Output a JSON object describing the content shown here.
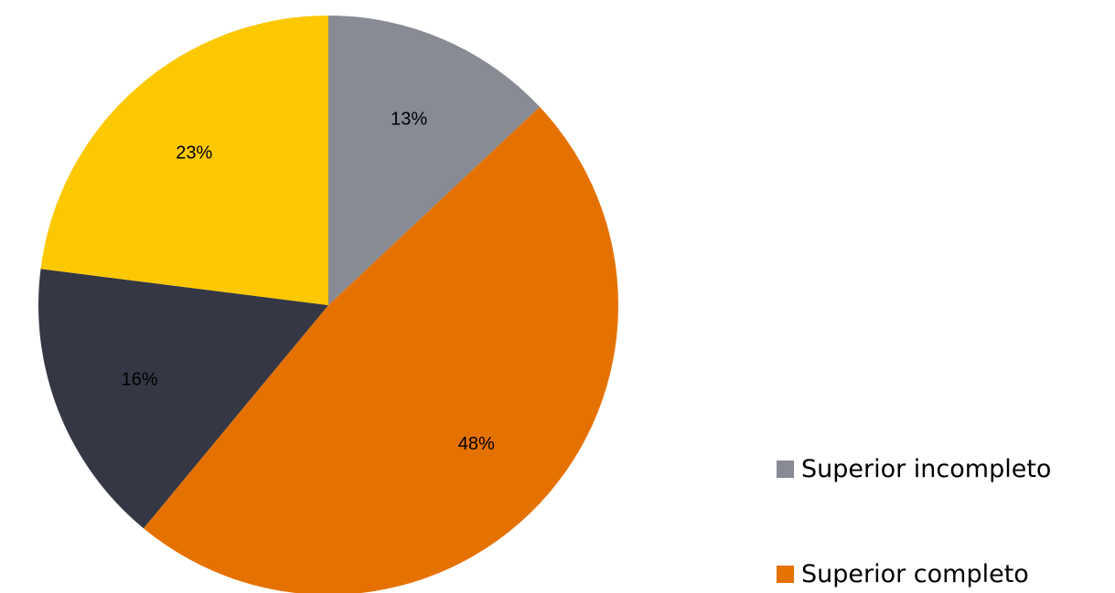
{
  "chart_data": {
    "type": "pie",
    "slices": [
      {
        "label": "Superior incompleto",
        "value": 13,
        "display": "13%",
        "color": "#888A94"
      },
      {
        "label": "Superior completo",
        "value": 48,
        "display": "48%",
        "color": "#E57200"
      },
      {
        "label": "",
        "value": 16,
        "display": "16%",
        "color": "#353744"
      },
      {
        "label": "",
        "value": 23,
        "display": "23%",
        "color": "#FCC800"
      }
    ],
    "start_angle_deg": 0,
    "direction": "clockwise",
    "legend": {
      "placement": "right-bottom",
      "entries": [
        "Superior incompleto",
        "Superior completo"
      ]
    }
  }
}
